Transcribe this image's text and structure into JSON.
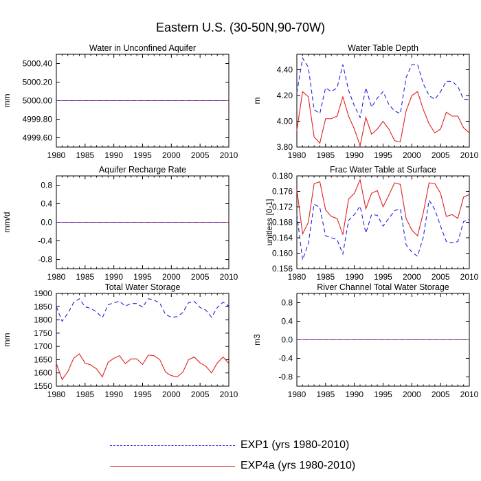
{
  "title": "Eastern U.S. (30-50N,90-70W)",
  "colors": {
    "exp1": "#1f1fe0",
    "exp4a": "#e01f1f"
  },
  "legend": [
    {
      "label": "EXP1 (yrs 1980-2010)",
      "style": "dashed",
      "color": "#1f1fe0"
    },
    {
      "label": "EXP4a (yrs 1980-2010)",
      "style": "solid",
      "color": "#e01f1f"
    }
  ],
  "chart_data": [
    {
      "type": "line",
      "title": "Water in Unconfined Aquifer",
      "ylabel": "mm",
      "xlim": [
        1980,
        2010
      ],
      "ylim": [
        4999.5,
        5000.5
      ],
      "yticks": [
        4999.6,
        4999.8,
        5000.0,
        5000.2,
        5000.4
      ],
      "ytick_labels": [
        "4999.60",
        "4999.80",
        "5000.00",
        "5000.20",
        "5000.40"
      ],
      "x_start": 1980,
      "series": [
        {
          "key": "exp1",
          "values": [
            5000,
            5000,
            5000,
            5000,
            5000,
            5000,
            5000,
            5000,
            5000,
            5000,
            5000,
            5000,
            5000,
            5000,
            5000,
            5000,
            5000,
            5000,
            5000,
            5000,
            5000,
            5000,
            5000,
            5000,
            5000,
            5000,
            5000,
            5000,
            5000,
            5000,
            5000
          ]
        },
        {
          "key": "exp4a",
          "values": [
            5000,
            5000,
            5000,
            5000,
            5000,
            5000,
            5000,
            5000,
            5000,
            5000,
            5000,
            5000,
            5000,
            5000,
            5000,
            5000,
            5000,
            5000,
            5000,
            5000,
            5000,
            5000,
            5000,
            5000,
            5000,
            5000,
            5000,
            5000,
            5000,
            5000,
            5000
          ]
        }
      ]
    },
    {
      "type": "line",
      "title": "Water Table Depth",
      "ylabel": "m",
      "xlim": [
        1980,
        2010
      ],
      "ylim": [
        3.8,
        4.52
      ],
      "yticks": [
        3.8,
        4.0,
        4.2,
        4.4
      ],
      "ytick_labels": [
        "3.80",
        "4.00",
        "4.20",
        "4.40"
      ],
      "x_start": 1980,
      "series": [
        {
          "key": "exp1",
          "values": [
            4.22,
            4.49,
            4.42,
            4.09,
            4.06,
            4.26,
            4.23,
            4.26,
            4.44,
            4.24,
            4.12,
            4.03,
            4.26,
            4.11,
            4.18,
            4.23,
            4.13,
            4.08,
            4.06,
            4.34,
            4.44,
            4.44,
            4.29,
            4.2,
            4.17,
            4.23,
            4.31,
            4.31,
            4.27,
            4.17,
            4.17
          ]
        },
        {
          "key": "exp4a",
          "values": [
            3.93,
            4.23,
            4.19,
            3.88,
            3.83,
            4.02,
            4.02,
            4.04,
            4.19,
            4.04,
            3.94,
            3.81,
            4.03,
            3.9,
            3.94,
            4.0,
            3.94,
            3.85,
            3.84,
            4.08,
            4.2,
            4.23,
            4.09,
            3.98,
            3.91,
            3.94,
            4.07,
            4.04,
            4.04,
            3.95,
            3.91
          ]
        }
      ]
    },
    {
      "type": "line",
      "title": "Aquifer Recharge Rate",
      "ylabel": "mm/d",
      "xlim": [
        1980,
        2010
      ],
      "ylim": [
        -1.0,
        1.0
      ],
      "yticks": [
        -0.8,
        -0.4,
        0.0,
        0.4,
        0.8
      ],
      "ytick_labels": [
        "-0.8",
        "-0.4",
        "0.0",
        "0.4",
        "0.8"
      ],
      "x_start": 1980,
      "series": [
        {
          "key": "exp1",
          "values": [
            0,
            0,
            0,
            0,
            0,
            0,
            0,
            0,
            0,
            0,
            0,
            0,
            0,
            0,
            0,
            0,
            0,
            0,
            0,
            0,
            0,
            0,
            0,
            0,
            0,
            0,
            0,
            0,
            0,
            0,
            0
          ]
        },
        {
          "key": "exp4a",
          "values": [
            0,
            0,
            0,
            0,
            0,
            0,
            0,
            0,
            0,
            0,
            0,
            0,
            0,
            0,
            0,
            0,
            0,
            0,
            0,
            0,
            0,
            0,
            0,
            0,
            0,
            0,
            0,
            0,
            0,
            0,
            0
          ]
        }
      ]
    },
    {
      "type": "line",
      "title": "Frac Water Table at Surface",
      "ylabel": "unitless [0-1]",
      "xlim": [
        1980,
        2010
      ],
      "ylim": [
        0.156,
        0.18
      ],
      "yticks": [
        0.156,
        0.16,
        0.164,
        0.168,
        0.172,
        0.176,
        0.18
      ],
      "ytick_labels": [
        "0.156",
        "0.160",
        "0.164",
        "0.168",
        "0.172",
        "0.176",
        "0.180"
      ],
      "x_start": 1980,
      "series": [
        {
          "key": "exp1",
          "values": [
            0.17,
            0.1583,
            0.1625,
            0.1727,
            0.1718,
            0.1645,
            0.164,
            0.1635,
            0.1598,
            0.1685,
            0.17,
            0.1722,
            0.1652,
            0.17,
            0.1698,
            0.167,
            0.169,
            0.171,
            0.1715,
            0.1622,
            0.1603,
            0.1592,
            0.1642,
            0.1737,
            0.1713,
            0.167,
            0.163,
            0.1627,
            0.163,
            0.1682,
            0.1687
          ]
        },
        {
          "key": "exp4a",
          "values": [
            0.1765,
            0.165,
            0.168,
            0.178,
            0.1785,
            0.1712,
            0.1695,
            0.169,
            0.1648,
            0.174,
            0.1755,
            0.179,
            0.1715,
            0.1755,
            0.1762,
            0.172,
            0.175,
            0.1782,
            0.1778,
            0.169,
            0.166,
            0.1645,
            0.1705,
            0.1782,
            0.178,
            0.1755,
            0.1695,
            0.17,
            0.169,
            0.1745,
            0.1752
          ]
        }
      ]
    },
    {
      "type": "line",
      "title": "Total Water Storage",
      "ylabel": "mm",
      "xlim": [
        1980,
        2010
      ],
      "ylim": [
        1550,
        1900
      ],
      "yticks": [
        1550,
        1600,
        1650,
        1700,
        1750,
        1800,
        1850,
        1900
      ],
      "ytick_labels": [
        "1550",
        "1600",
        "1650",
        "1700",
        "1750",
        "1800",
        "1850",
        "1900"
      ],
      "x_start": 1980,
      "series": [
        {
          "key": "exp1",
          "values": [
            1850,
            1795,
            1825,
            1865,
            1880,
            1850,
            1843,
            1830,
            1808,
            1857,
            1865,
            1870,
            1852,
            1862,
            1862,
            1848,
            1880,
            1875,
            1863,
            1820,
            1810,
            1812,
            1828,
            1865,
            1870,
            1847,
            1837,
            1810,
            1847,
            1867,
            1852
          ]
        },
        {
          "key": "exp4a",
          "values": [
            1636,
            1575,
            1605,
            1655,
            1672,
            1637,
            1630,
            1615,
            1585,
            1640,
            1655,
            1665,
            1635,
            1653,
            1653,
            1632,
            1667,
            1665,
            1650,
            1603,
            1590,
            1585,
            1603,
            1650,
            1660,
            1638,
            1625,
            1600,
            1638,
            1660,
            1636
          ]
        }
      ]
    },
    {
      "type": "line",
      "title": "River Channel Total Water Storage",
      "ylabel": "m3",
      "xlim": [
        1980,
        2010
      ],
      "ylim": [
        -1.0,
        1.0
      ],
      "yticks": [
        -0.8,
        -0.4,
        0.0,
        0.4,
        0.8
      ],
      "ytick_labels": [
        "-0.8",
        "-0.4",
        "0.0",
        "0.4",
        "0.8"
      ],
      "x_start": 1980,
      "series": [
        {
          "key": "exp1",
          "values": [
            0,
            0,
            0,
            0,
            0,
            0,
            0,
            0,
            0,
            0,
            0,
            0,
            0,
            0,
            0,
            0,
            0,
            0,
            0,
            0,
            0,
            0,
            0,
            0,
            0,
            0,
            0,
            0,
            0,
            0,
            0
          ]
        },
        {
          "key": "exp4a",
          "values": [
            0,
            0,
            0,
            0,
            0,
            0,
            0,
            0,
            0,
            0,
            0,
            0,
            0,
            0,
            0,
            0,
            0,
            0,
            0,
            0,
            0,
            0,
            0,
            0,
            0,
            0,
            0,
            0,
            0,
            0,
            0
          ]
        }
      ]
    }
  ],
  "xticks": [
    1980,
    1985,
    1990,
    1995,
    2000,
    2005,
    2010
  ]
}
